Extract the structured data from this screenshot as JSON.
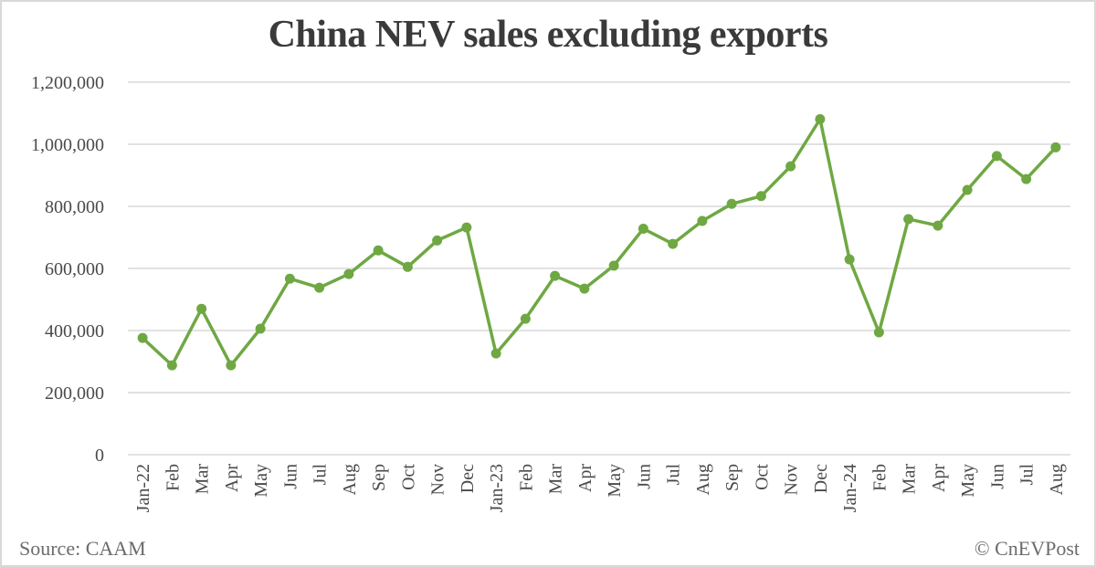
{
  "title": "China NEV sales excluding exports",
  "footer": {
    "source": "Source: CAAM",
    "credit": "© CnEVPost"
  },
  "colors": {
    "line": "#6FA843",
    "gridline": "#d9d9d9",
    "text": "#4a4a4a"
  },
  "chart_data": {
    "type": "line",
    "title": "China NEV sales excluding exports",
    "xlabel": "",
    "ylabel": "",
    "ylim": [
      0,
      1200000
    ],
    "yticks": [
      0,
      200000,
      400000,
      600000,
      800000,
      1000000,
      1200000
    ],
    "ytick_labels": [
      "0",
      "200,000",
      "400,000",
      "600,000",
      "800,000",
      "1,000,000",
      "1,200,000"
    ],
    "grid": true,
    "legend": "none",
    "markers": true,
    "categories": [
      "Jan-22",
      "Feb",
      "Mar",
      "Apr",
      "May",
      "Jun",
      "Jul",
      "Aug",
      "Sep",
      "Oct",
      "Nov",
      "Dec",
      "Jan-23",
      "Feb",
      "Mar",
      "Apr",
      "May",
      "Jun",
      "Jul",
      "Aug",
      "Sep",
      "Oct",
      "Nov",
      "Dec",
      "Jan-24",
      "Feb",
      "Mar",
      "Apr",
      "May",
      "Jun",
      "Jul",
      "Aug"
    ],
    "series": [
      {
        "name": "NEV sales excluding exports",
        "values": [
          376000,
          288000,
          470000,
          288000,
          406000,
          567000,
          538000,
          582000,
          658000,
          605000,
          690000,
          732000,
          326000,
          438000,
          576000,
          535000,
          609000,
          728000,
          679000,
          753000,
          808000,
          833000,
          929000,
          1081000,
          629000,
          394000,
          759000,
          738000,
          853000,
          962000,
          888000,
          990000
        ]
      }
    ],
    "annotations": [
      "Source: CAAM",
      "© CnEVPost"
    ]
  }
}
